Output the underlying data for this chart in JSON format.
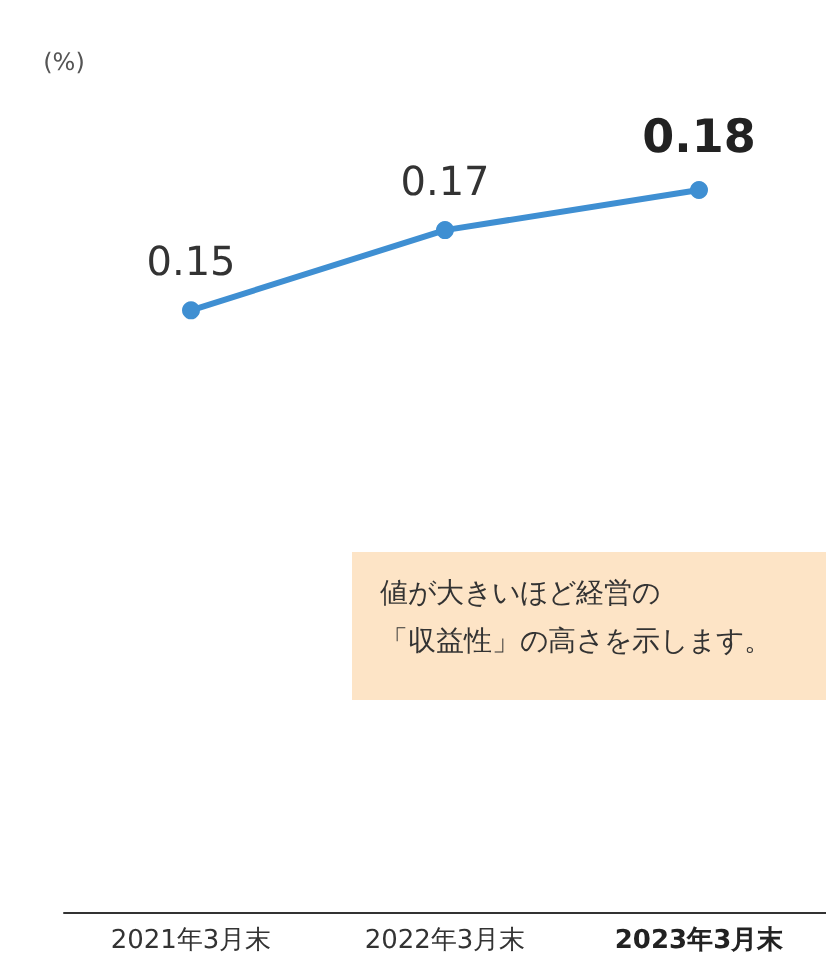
{
  "chart_data": {
    "type": "line",
    "ylabel": "(%)",
    "categories": [
      "2021年3月末",
      "2022年3月末",
      "2023年3月末"
    ],
    "series": [
      {
        "color": "#3f8fd2",
        "values": [
          0.15,
          0.17,
          0.18
        ]
      }
    ],
    "tick_labels": "x",
    "data_labels": true,
    "marker": "circle",
    "line_style": "solid",
    "grid": false,
    "annotations": [
      "値が大きいほど経営の",
      "「収益性」の高さを示します。"
    ]
  }
}
